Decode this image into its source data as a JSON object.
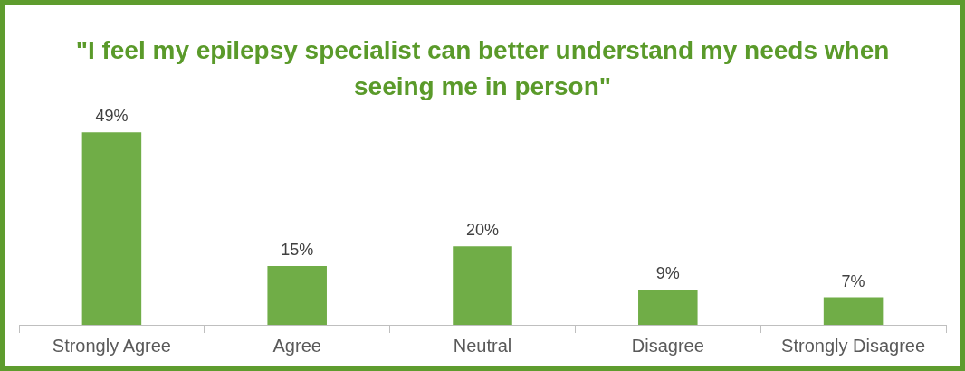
{
  "chart_data": {
    "type": "bar",
    "title": "\"I feel my epilepsy specialist can better understand my needs when seeing me in person\"",
    "categories": [
      "Strongly Agree",
      "Agree",
      "Neutral",
      "Disagree",
      "Strongly Disagree"
    ],
    "values": [
      49,
      15,
      20,
      9,
      7
    ],
    "value_labels": [
      "49%",
      "15%",
      "20%",
      "9%",
      "7%"
    ],
    "color": "#70ad47"
  }
}
